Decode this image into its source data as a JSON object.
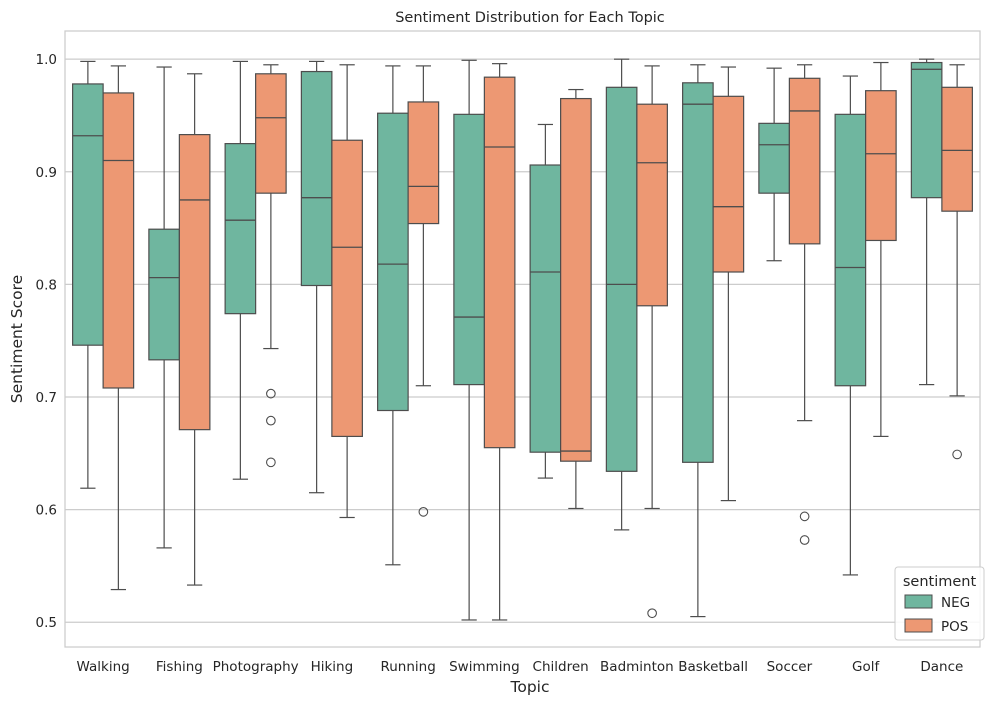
{
  "chart_data": {
    "type": "box",
    "title": "Sentiment Distribution for Each Topic",
    "xlabel": "Topic",
    "ylabel": "Sentiment Score",
    "ylim": [
      0.478,
      1.025
    ],
    "yticks": [
      0.5,
      0.6,
      0.7,
      0.8,
      0.9,
      1.0
    ],
    "ytick_labels": [
      "0.5",
      "0.6",
      "0.7",
      "0.8",
      "0.9",
      "1.0"
    ],
    "grid": "horizontal",
    "legend": {
      "title": "sentiment",
      "placement": "bottom-right"
    },
    "categories": [
      "Walking",
      "Fishing",
      "Photography",
      "Hiking",
      "Running",
      "Swimming",
      "Children",
      "Badminton",
      "Basketball",
      "Soccer",
      "Golf",
      "Dance"
    ],
    "series": [
      {
        "name": "NEG",
        "color": "#6fb69f",
        "boxes": [
          {
            "whislo": 0.619,
            "q1": 0.746,
            "med": 0.932,
            "q3": 0.978,
            "whishi": 0.998,
            "fliers": []
          },
          {
            "whislo": 0.566,
            "q1": 0.733,
            "med": 0.806,
            "q3": 0.849,
            "whishi": 0.993,
            "fliers": []
          },
          {
            "whislo": 0.627,
            "q1": 0.774,
            "med": 0.857,
            "q3": 0.925,
            "whishi": 0.998,
            "fliers": []
          },
          {
            "whislo": 0.615,
            "q1": 0.799,
            "med": 0.877,
            "q3": 0.989,
            "whishi": 0.998,
            "fliers": []
          },
          {
            "whislo": 0.551,
            "q1": 0.688,
            "med": 0.818,
            "q3": 0.952,
            "whishi": 0.994,
            "fliers": []
          },
          {
            "whislo": 0.502,
            "q1": 0.711,
            "med": 0.771,
            "q3": 0.951,
            "whishi": 0.999,
            "fliers": []
          },
          {
            "whislo": 0.628,
            "q1": 0.651,
            "med": 0.811,
            "q3": 0.906,
            "whishi": 0.942,
            "fliers": []
          },
          {
            "whislo": 0.582,
            "q1": 0.634,
            "med": 0.8,
            "q3": 0.975,
            "whishi": 1.0,
            "fliers": []
          },
          {
            "whislo": 0.505,
            "q1": 0.642,
            "med": 0.96,
            "q3": 0.979,
            "whishi": 0.995,
            "fliers": []
          },
          {
            "whislo": 0.821,
            "q1": 0.881,
            "med": 0.924,
            "q3": 0.943,
            "whishi": 0.992,
            "fliers": []
          },
          {
            "whislo": 0.542,
            "q1": 0.71,
            "med": 0.815,
            "q3": 0.951,
            "whishi": 0.985,
            "fliers": []
          },
          {
            "whislo": 0.711,
            "q1": 0.877,
            "med": 0.991,
            "q3": 0.997,
            "whishi": 1.0,
            "fliers": []
          }
        ]
      },
      {
        "name": "POS",
        "color": "#ed9873",
        "boxes": [
          {
            "whislo": 0.529,
            "q1": 0.708,
            "med": 0.91,
            "q3": 0.97,
            "whishi": 0.994,
            "fliers": []
          },
          {
            "whislo": 0.533,
            "q1": 0.671,
            "med": 0.875,
            "q3": 0.933,
            "whishi": 0.987,
            "fliers": []
          },
          {
            "whislo": 0.743,
            "q1": 0.881,
            "med": 0.948,
            "q3": 0.987,
            "whishi": 0.995,
            "fliers": [
              0.703,
              0.679,
              0.642
            ]
          },
          {
            "whislo": 0.593,
            "q1": 0.665,
            "med": 0.833,
            "q3": 0.928,
            "whishi": 0.995,
            "fliers": []
          },
          {
            "whislo": 0.71,
            "q1": 0.854,
            "med": 0.887,
            "q3": 0.962,
            "whishi": 0.994,
            "fliers": [
              0.598
            ]
          },
          {
            "whislo": 0.502,
            "q1": 0.655,
            "med": 0.922,
            "q3": 0.984,
            "whishi": 0.996,
            "fliers": []
          },
          {
            "whislo": 0.601,
            "q1": 0.643,
            "med": 0.652,
            "q3": 0.965,
            "whishi": 0.973,
            "fliers": []
          },
          {
            "whislo": 0.601,
            "q1": 0.781,
            "med": 0.908,
            "q3": 0.96,
            "whishi": 0.994,
            "fliers": [
              0.508
            ]
          },
          {
            "whislo": 0.608,
            "q1": 0.811,
            "med": 0.869,
            "q3": 0.967,
            "whishi": 0.993,
            "fliers": []
          },
          {
            "whislo": 0.679,
            "q1": 0.836,
            "med": 0.954,
            "q3": 0.983,
            "whishi": 0.995,
            "fliers": [
              0.594,
              0.573
            ]
          },
          {
            "whislo": 0.665,
            "q1": 0.839,
            "med": 0.916,
            "q3": 0.972,
            "whishi": 0.997,
            "fliers": []
          },
          {
            "whislo": 0.701,
            "q1": 0.865,
            "med": 0.919,
            "q3": 0.975,
            "whishi": 0.995,
            "fliers": [
              0.649
            ]
          }
        ]
      }
    ]
  }
}
